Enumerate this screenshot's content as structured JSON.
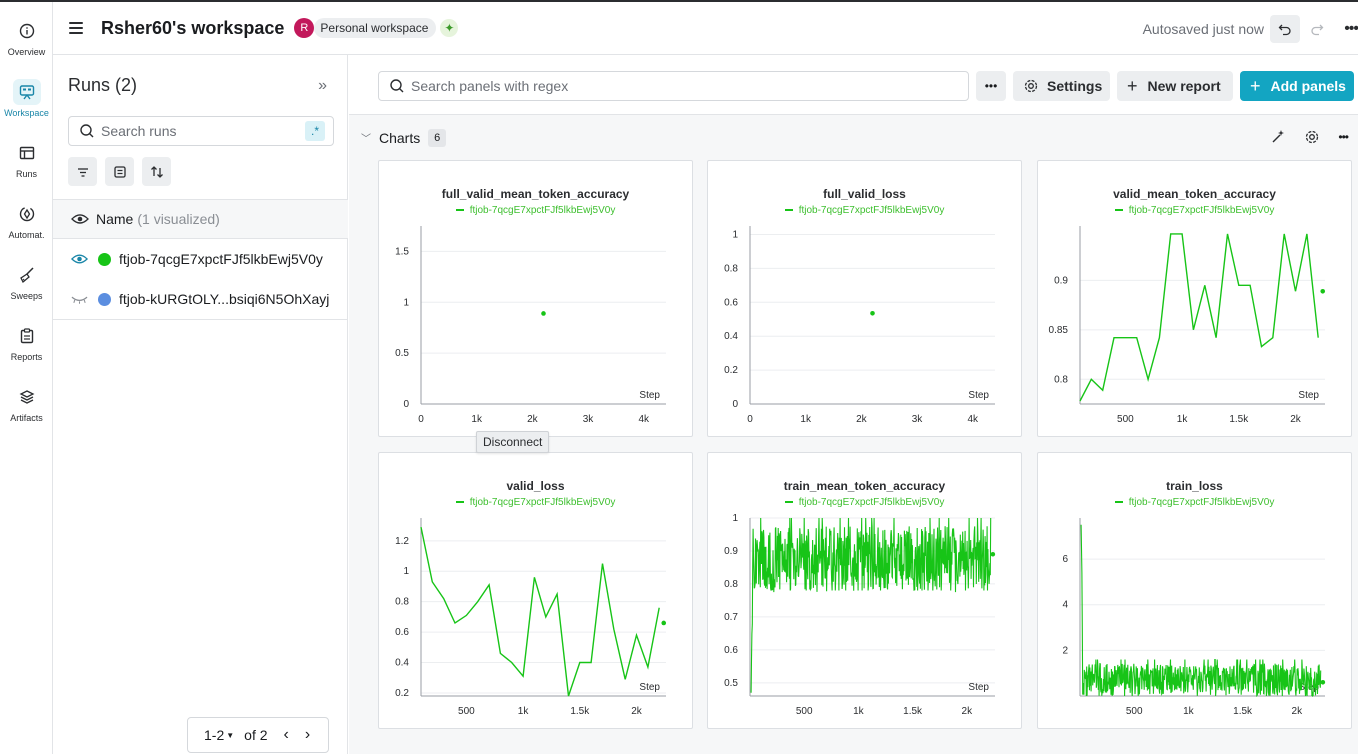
{
  "rail": [
    {
      "label": "Overview",
      "icon": "info-icon"
    },
    {
      "label": "Workspace",
      "icon": "workspace-icon",
      "active": true
    },
    {
      "label": "Runs",
      "icon": "table-icon"
    },
    {
      "label": "Automat.",
      "icon": "automation-icon"
    },
    {
      "label": "Sweeps",
      "icon": "broom-icon"
    },
    {
      "label": "Reports",
      "icon": "clipboard-icon"
    },
    {
      "label": "Artifacts",
      "icon": "layers-icon"
    }
  ],
  "header": {
    "title": "Rsher60's workspace",
    "avatar_initial": "R",
    "workspace_badge": "Personal workspace",
    "autosaved": "Autosaved just now"
  },
  "runs": {
    "title": "Runs (2)",
    "search_placeholder": "Search runs",
    "regex_label": ".*",
    "name_col": "Name",
    "name_sub": "(1 visualized)",
    "items": [
      {
        "name": "ftjob-7qcgE7xpctFJf5lkbEwj5V0y",
        "color": "#17c417",
        "visible": true
      },
      {
        "name": "ftjob-kURGtOLY...bsiqi6N5OhXayj",
        "color": "#5b8ee0",
        "visible": false
      }
    ],
    "pager": {
      "range": "1-2",
      "of": "of 2"
    }
  },
  "toolbar": {
    "search_placeholder": "Search panels with regex",
    "more": "•••",
    "settings": "Settings",
    "new_report": "New report",
    "add_panels": "Add panels"
  },
  "section": {
    "title": "Charts",
    "count": "6"
  },
  "tooltip": "Disconnect",
  "colors": {
    "series": "#17c417",
    "accent": "#13a5c2"
  },
  "chart_data": [
    {
      "type": "scatter",
      "title": "full_valid_mean_token_accuracy",
      "series": [
        {
          "name": "ftjob-7qcgE7xpctFJf5lkbEwj5V0y",
          "x": [
            2200
          ],
          "y": [
            0.89
          ]
        }
      ],
      "xlabel": "Step",
      "xlim": [
        0,
        4400
      ],
      "ylim": [
        0,
        1.75
      ],
      "xticks": [
        0,
        1000,
        2000,
        3000,
        4000
      ],
      "xtick_labels": [
        "0",
        "1k",
        "2k",
        "3k",
        "4k"
      ],
      "yticks": [
        0,
        0.5,
        1,
        1.5
      ],
      "ytick_labels": [
        "0",
        "0.5",
        "1",
        "1.5"
      ]
    },
    {
      "type": "scatter",
      "title": "full_valid_loss",
      "series": [
        {
          "name": "ftjob-7qcgE7xpctFJf5lkbEwj5V0y",
          "x": [
            2200
          ],
          "y": [
            0.535
          ]
        }
      ],
      "xlabel": "Step",
      "xlim": [
        0,
        4400
      ],
      "ylim": [
        0,
        1.05
      ],
      "xticks": [
        0,
        1000,
        2000,
        3000,
        4000
      ],
      "xtick_labels": [
        "0",
        "1k",
        "2k",
        "3k",
        "4k"
      ],
      "yticks": [
        0,
        0.2,
        0.4,
        0.6,
        0.8,
        1
      ],
      "ytick_labels": [
        "0",
        "0.2",
        "0.4",
        "0.6",
        "0.8",
        "1"
      ]
    },
    {
      "type": "line",
      "title": "valid_mean_token_accuracy",
      "series": [
        {
          "name": "ftjob-7qcgE7xpctFJf5lkbEwj5V0y",
          "x": [
            100,
            200,
            300,
            400,
            500,
            600,
            700,
            800,
            900,
            1000,
            1100,
            1200,
            1300,
            1400,
            1500,
            1600,
            1700,
            1800,
            1900,
            2000,
            2100,
            2200
          ],
          "y": [
            0.778,
            0.8,
            0.789,
            0.842,
            0.842,
            0.842,
            0.8,
            0.842,
            0.947,
            0.947,
            0.85,
            0.895,
            0.842,
            0.947,
            0.895,
            0.895,
            0.833,
            0.842,
            0.947,
            0.889,
            0.947,
            0.842
          ]
        }
      ],
      "last_point": {
        "x": 2240,
        "y": 0.889
      },
      "xlabel": "Step",
      "xlim": [
        100,
        2260
      ],
      "ylim": [
        0.775,
        0.955
      ],
      "xticks": [
        500,
        1000,
        1500,
        2000
      ],
      "xtick_labels": [
        "500",
        "1k",
        "1.5k",
        "2k"
      ],
      "yticks": [
        0.8,
        0.85,
        0.9
      ],
      "ytick_labels": [
        "0.8",
        "0.85",
        "0.9"
      ]
    },
    {
      "type": "line",
      "title": "valid_loss",
      "series": [
        {
          "name": "ftjob-7qcgE7xpctFJf5lkbEwj5V0y",
          "x": [
            100,
            200,
            300,
            400,
            500,
            600,
            700,
            800,
            900,
            1000,
            1100,
            1200,
            1300,
            1400,
            1500,
            1600,
            1700,
            1800,
            1900,
            2000,
            2100,
            2200
          ],
          "y": [
            1.29,
            0.93,
            0.82,
            0.66,
            0.71,
            0.8,
            0.91,
            0.46,
            0.4,
            0.31,
            0.96,
            0.7,
            0.85,
            0.18,
            0.4,
            0.4,
            1.05,
            0.62,
            0.29,
            0.58,
            0.37,
            0.76
          ]
        }
      ],
      "last_point": {
        "x": 2240,
        "y": 0.66
      },
      "xlabel": "Step",
      "xlim": [
        100,
        2260
      ],
      "ylim": [
        0.18,
        1.35
      ],
      "xticks": [
        500,
        1000,
        1500,
        2000
      ],
      "xtick_labels": [
        "500",
        "1k",
        "1.5k",
        "2k"
      ],
      "yticks": [
        0.2,
        0.4,
        0.6,
        0.8,
        1,
        1.2
      ],
      "ytick_labels": [
        "0.2",
        "0.4",
        "0.6",
        "0.8",
        "1",
        "1.2"
      ]
    },
    {
      "type": "line",
      "title": "train_mean_token_accuracy",
      "series": [
        {
          "name": "ftjob-7qcgE7xpctFJf5lkbEwj5V0y",
          "noisy": true,
          "start_y": 0.47,
          "mean_y": 0.875,
          "min_y": 0.78,
          "max_y": 1.0
        }
      ],
      "last_point": {
        "x": 2240,
        "y": 0.89
      },
      "xlabel": "Step",
      "xlim": [
        0,
        2260
      ],
      "ylim": [
        0.46,
        1.0
      ],
      "xticks": [
        500,
        1000,
        1500,
        2000
      ],
      "xtick_labels": [
        "500",
        "1k",
        "1.5k",
        "2k"
      ],
      "yticks": [
        0.5,
        0.6,
        0.7,
        0.8,
        0.9,
        1
      ],
      "ytick_labels": [
        "0.5",
        "0.6",
        "0.7",
        "0.8",
        "0.9",
        "1"
      ]
    },
    {
      "type": "line",
      "title": "train_loss",
      "series": [
        {
          "name": "ftjob-7qcgE7xpctFJf5lkbEwj5V0y",
          "noisy": true,
          "start_y": 7.5,
          "mean_y": 0.7,
          "min_y": 0.3,
          "max_y": 1.6
        }
      ],
      "last_point": {
        "x": 2240,
        "y": 0.6
      },
      "xlabel": "Step",
      "xlim": [
        0,
        2260
      ],
      "ylim": [
        0,
        7.8
      ],
      "xticks": [
        500,
        1000,
        1500,
        2000
      ],
      "xtick_labels": [
        "500",
        "1k",
        "1.5k",
        "2k"
      ],
      "yticks": [
        2,
        4,
        6
      ],
      "ytick_labels": [
        "2",
        "4",
        "6"
      ]
    }
  ]
}
